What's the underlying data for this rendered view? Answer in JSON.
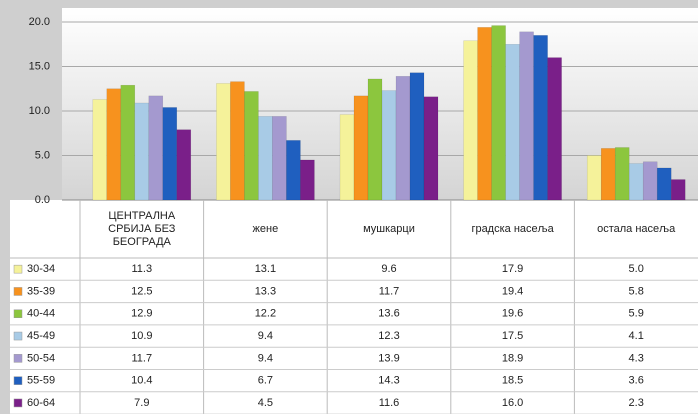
{
  "chart_data": {
    "type": "bar",
    "categories": [
      "ЦЕНТРАЛНА\nСРБИЈА БЕЗ\nБЕОГРАДА",
      "жене",
      "мушкарци",
      "градска насеља",
      "остала насеља"
    ],
    "ylim": [
      0,
      20
    ],
    "yticks": [
      {
        "value": 0,
        "label": "0.0"
      },
      {
        "value": 5,
        "label": "5.0"
      },
      {
        "value": 10,
        "label": "10.0"
      },
      {
        "value": 15,
        "label": "15.0"
      },
      {
        "value": 20,
        "label": "20.0"
      }
    ],
    "grid": true,
    "series": [
      {
        "name": "30-34",
        "color": "#f5f29a",
        "values": [
          11.3,
          13.1,
          9.6,
          17.9,
          5.0
        ],
        "value_labels": [
          "11.3",
          "13.1",
          "9.6",
          "17.9",
          "5.0"
        ]
      },
      {
        "name": "35-39",
        "color": "#f7921e",
        "values": [
          12.5,
          13.3,
          11.7,
          19.4,
          5.8
        ],
        "value_labels": [
          "12.5",
          "13.3",
          "11.7",
          "19.4",
          "5.8"
        ]
      },
      {
        "name": "40-44",
        "color": "#8cc63e",
        "values": [
          12.9,
          12.2,
          13.6,
          19.6,
          5.9
        ],
        "value_labels": [
          "12.9",
          "12.2",
          "13.6",
          "19.6",
          "5.9"
        ]
      },
      {
        "name": "45-49",
        "color": "#a8cbe6",
        "values": [
          10.9,
          9.4,
          12.3,
          17.5,
          4.1
        ],
        "value_labels": [
          "10.9",
          "9.4",
          "12.3",
          "17.5",
          "4.1"
        ]
      },
      {
        "name": "50-54",
        "color": "#a499cf",
        "values": [
          11.7,
          9.4,
          13.9,
          18.9,
          4.3
        ],
        "value_labels": [
          "11.7",
          "9.4",
          "13.9",
          "18.9",
          "4.3"
        ]
      },
      {
        "name": "55-59",
        "color": "#1f5fbf",
        "values": [
          10.4,
          6.7,
          14.3,
          18.5,
          3.6
        ],
        "value_labels": [
          "10.4",
          "6.7",
          "14.3",
          "18.5",
          "3.6"
        ]
      },
      {
        "name": "60-64",
        "color": "#7a1f89",
        "values": [
          7.9,
          4.5,
          11.6,
          16.0,
          2.3
        ],
        "value_labels": [
          "7.9",
          "4.5",
          "11.6",
          "16.0",
          "2.3"
        ]
      }
    ]
  }
}
